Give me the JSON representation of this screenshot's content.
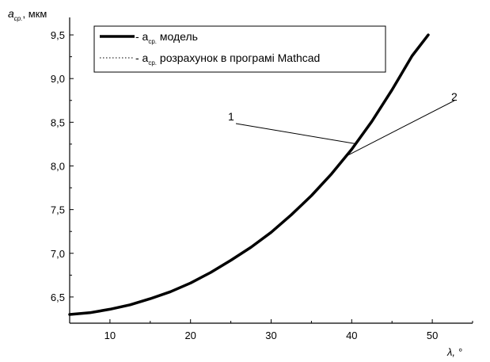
{
  "chart_data": {
    "type": "line",
    "ylabel_main": "a",
    "ylabel_sub": "ср.",
    "ylabel_unit": ", мкм",
    "xlabel": "λ, °",
    "xlim": [
      5,
      55
    ],
    "ylim": [
      6.2,
      9.7
    ],
    "xticks": [
      10,
      20,
      30,
      40,
      50
    ],
    "xtick_labels": [
      "10",
      "20",
      "30",
      "40",
      "50"
    ],
    "yticks": [
      6.5,
      7.0,
      7.5,
      8.0,
      8.5,
      9.0,
      9.5
    ],
    "ytick_labels": [
      "6,5",
      "7,0",
      "7,5",
      "8,0",
      "8,5",
      "9,0",
      "9,5"
    ],
    "grid": false,
    "legend_position": "top-left",
    "series": [
      {
        "name_prefix": "- a",
        "name_sub": "ср.",
        "name_suffix": " модель",
        "style": "solid",
        "color": "#000000",
        "x": [
          5,
          7.5,
          10,
          12.5,
          15,
          17.5,
          20,
          22.5,
          25,
          27.5,
          30,
          32.5,
          35,
          37.5,
          40,
          42.5,
          45,
          47.5,
          49.5
        ],
        "y": [
          6.3,
          6.32,
          6.36,
          6.41,
          6.48,
          6.56,
          6.66,
          6.78,
          6.92,
          7.07,
          7.24,
          7.44,
          7.66,
          7.91,
          8.19,
          8.51,
          8.87,
          9.26,
          9.5
        ]
      },
      {
        "name_prefix": "- a",
        "name_sub": "ср.",
        "name_suffix": " розрахунок в програмі Mathcad",
        "style": "dotted",
        "color": "#000000",
        "x": [
          5,
          7.5,
          10,
          12.5,
          15,
          17.5,
          20,
          22.5,
          25,
          27.5,
          30,
          32.5,
          35,
          37.5,
          40,
          42.5,
          45,
          47.5,
          49.5
        ],
        "y": [
          6.3,
          6.32,
          6.36,
          6.41,
          6.48,
          6.56,
          6.66,
          6.78,
          6.92,
          7.07,
          7.24,
          7.44,
          7.66,
          7.91,
          8.19,
          8.51,
          8.87,
          9.26,
          9.5
        ]
      }
    ],
    "annotations": [
      {
        "label": "1"
      },
      {
        "label": "2"
      }
    ]
  }
}
